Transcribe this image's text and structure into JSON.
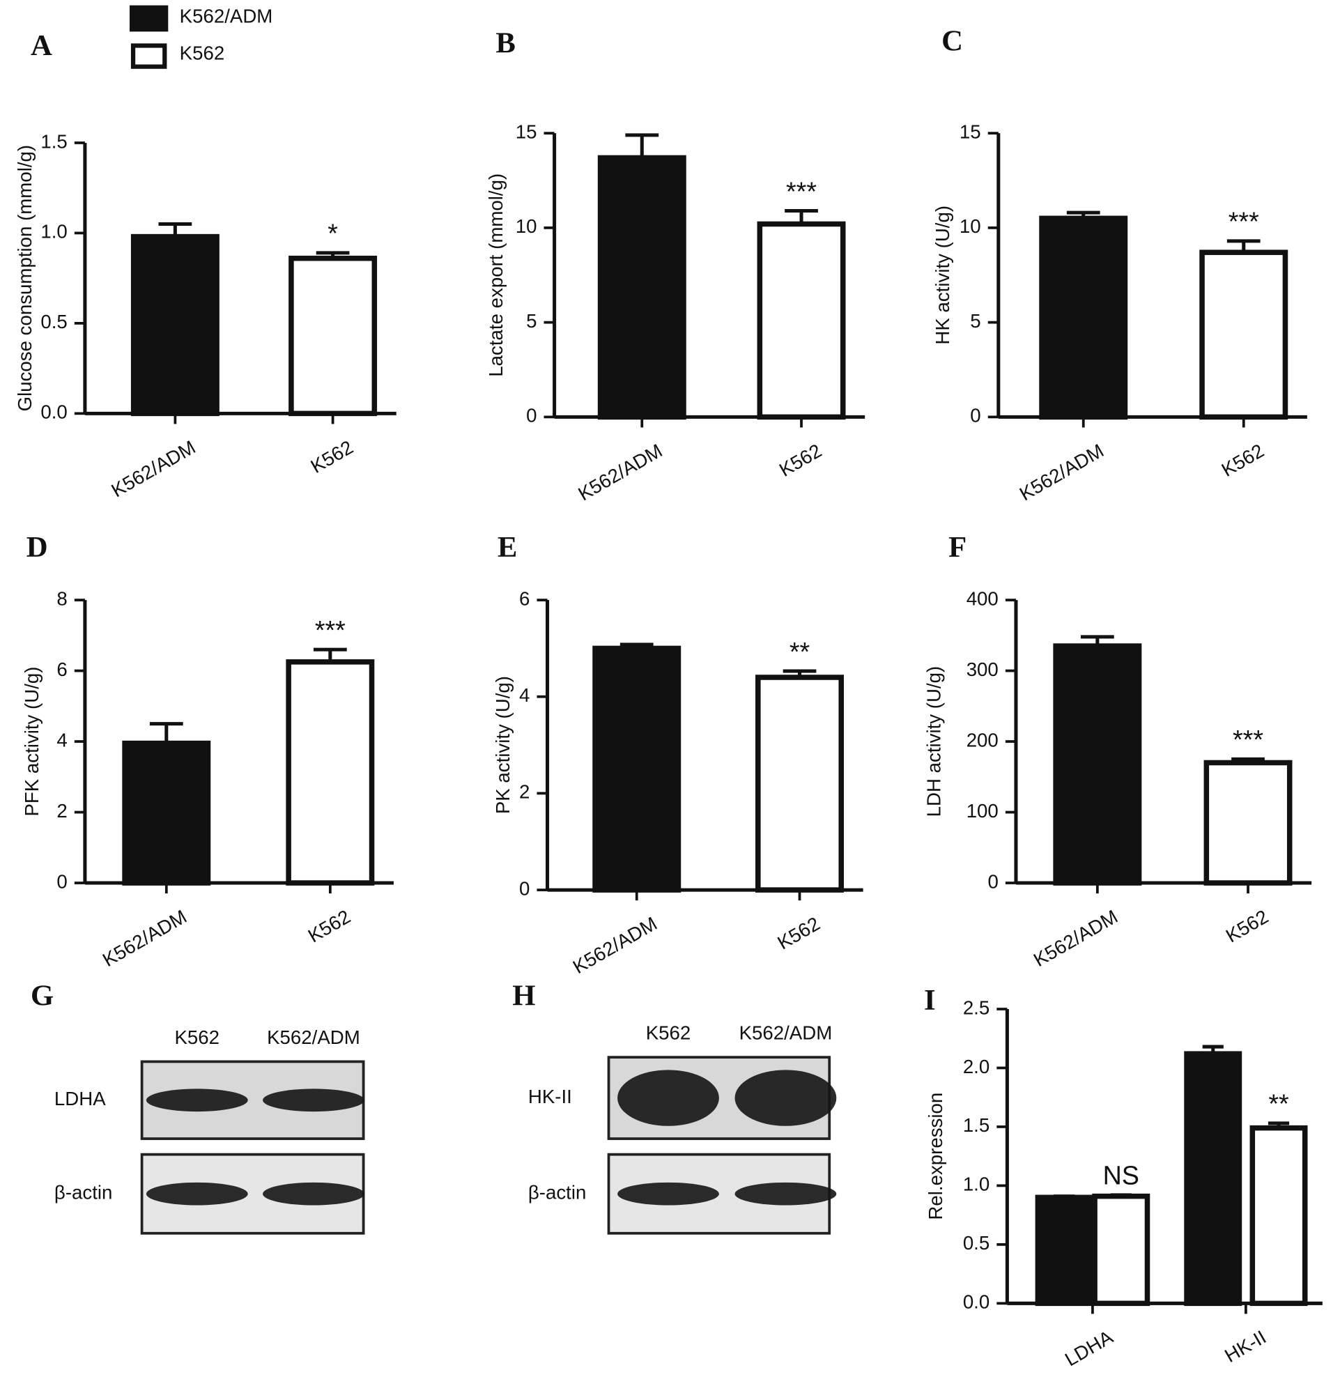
{
  "legend": [
    {
      "name": "K562/ADM",
      "color": "#111111"
    },
    {
      "name": "K562",
      "color": "#ffffff"
    }
  ],
  "chart_data": [
    {
      "type": "bar",
      "panel": "A",
      "ylabel": "Glucose consumption (mmol/g)",
      "categories": [
        "K562/ADM",
        "K562"
      ],
      "values": [
        0.98,
        0.86
      ],
      "errors": [
        0.07,
        0.03
      ],
      "colors": [
        "#111111",
        "#ffffff"
      ],
      "annotations": [
        null,
        "*"
      ],
      "ylim": [
        0,
        1.5
      ],
      "yticks": [
        {
          "value": 0,
          "label": "0.0"
        },
        0.5,
        {
          "value": 1,
          "label": "1.0"
        },
        1.5
      ]
    },
    {
      "type": "bar",
      "panel": "B",
      "ylabel": "Lactate export (mmol/g)",
      "categories": [
        "K562/ADM",
        "K562"
      ],
      "values": [
        13.7,
        10.2
      ],
      "errors": [
        1.2,
        0.7
      ],
      "colors": [
        "#111111",
        "#ffffff"
      ],
      "annotations": [
        null,
        "***"
      ],
      "ylim": [
        0,
        15
      ],
      "yticks": [
        0,
        5,
        10,
        15
      ]
    },
    {
      "type": "bar",
      "panel": "C",
      "ylabel": "HK activity (U/g)",
      "categories": [
        "K562/ADM",
        "K562"
      ],
      "values": [
        10.5,
        8.7
      ],
      "errors": [
        0.3,
        0.6
      ],
      "colors": [
        "#111111",
        "#ffffff"
      ],
      "annotations": [
        null,
        "***"
      ],
      "ylim": [
        0,
        15
      ],
      "yticks": [
        0,
        5,
        10,
        15
      ]
    },
    {
      "type": "bar",
      "panel": "D",
      "ylabel": "PFK activity (U/g)",
      "categories": [
        "K562/ADM",
        "K562"
      ],
      "values": [
        3.95,
        6.25
      ],
      "errors": [
        0.55,
        0.35
      ],
      "colors": [
        "#111111",
        "#ffffff"
      ],
      "annotations": [
        null,
        "***"
      ],
      "ylim": [
        0,
        8
      ],
      "yticks": [
        0,
        2,
        4,
        6,
        8
      ]
    },
    {
      "type": "bar",
      "panel": "E",
      "ylabel": "PK activity (U/g)",
      "categories": [
        "K562/ADM",
        "K562"
      ],
      "values": [
        5.0,
        4.4
      ],
      "errors": [
        0.08,
        0.13
      ],
      "colors": [
        "#111111",
        "#ffffff"
      ],
      "annotations": [
        null,
        "**"
      ],
      "ylim": [
        0,
        6
      ],
      "yticks": [
        0,
        2,
        4,
        6
      ]
    },
    {
      "type": "bar",
      "panel": "F",
      "ylabel": "LDH activity (U/g)",
      "categories": [
        "K562/ADM",
        "K562"
      ],
      "values": [
        335,
        170
      ],
      "errors": [
        13,
        5
      ],
      "colors": [
        "#111111",
        "#ffffff"
      ],
      "annotations": [
        null,
        "***"
      ],
      "ylim": [
        0,
        400
      ],
      "yticks": [
        0,
        100,
        200,
        300,
        400
      ]
    },
    {
      "type": "blot",
      "panel": "G",
      "lanes": [
        "K562",
        "K562/ADM"
      ],
      "rows": [
        "LDHA",
        "β-actin"
      ]
    },
    {
      "type": "blot",
      "panel": "H",
      "lanes": [
        "K562",
        "K562/ADM"
      ],
      "rows": [
        "HK-II",
        "β-actin"
      ]
    },
    {
      "type": "grouped_bar",
      "panel": "I",
      "ylabel": "Rel.expression",
      "categories": [
        "LDHA",
        "HK-II"
      ],
      "series": [
        {
          "color": "#111111",
          "values": [
            0.9,
            2.12
          ],
          "errors": [
            0.01,
            0.06
          ],
          "annotations": [
            null,
            null
          ]
        },
        {
          "color": "#ffffff",
          "values": [
            0.91,
            1.49
          ],
          "errors": [
            0.01,
            0.04
          ],
          "annotations": [
            "NS",
            "**"
          ]
        }
      ],
      "ylim": [
        0,
        2.5
      ],
      "yticks": [
        {
          "value": 0,
          "label": "0.0"
        },
        0.5,
        {
          "value": 1,
          "label": "1.0"
        },
        1.5,
        {
          "value": 2,
          "label": "2.0"
        },
        2.5
      ]
    }
  ]
}
